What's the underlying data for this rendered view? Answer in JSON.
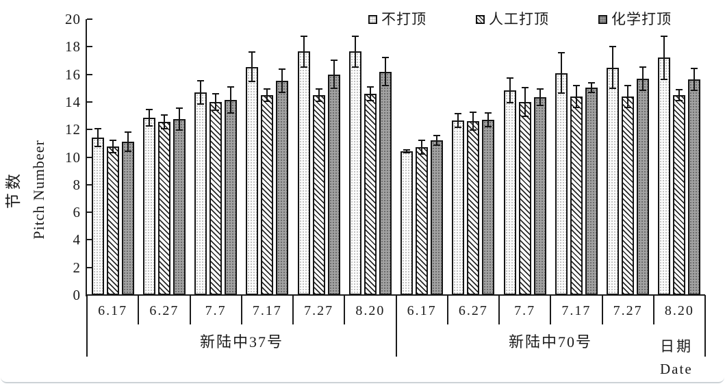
{
  "figure": {
    "background": "#ffffff",
    "page_edge_color": "#ccd2d6"
  },
  "colors": {
    "axis": "#1a1a1a",
    "bar_border": "#141414",
    "light_stipple_fill": "#fcfcfc",
    "light_stipple_dot": "#b2b2b2",
    "hatch_line": "#262626",
    "dark_stipple_fill": "#a2a2a2",
    "dark_stipple_dot": "#686868"
  },
  "chart_data": {
    "type": "bar",
    "title": "",
    "ylabel_cn": "节数",
    "ylabel_en": "Pitch Numbeer",
    "xlabel_cn": "日期",
    "xlabel_en": "Date",
    "ylim": [
      0,
      20
    ],
    "y_tick_step": 2,
    "grid": false,
    "error_bars": true,
    "legend_position": "top",
    "group_labels": [
      "新陆中37号",
      "新陆中70号"
    ],
    "categories": [
      "6.17",
      "6.27",
      "7.7",
      "7.17",
      "7.27",
      "8.20",
      "6.17",
      "6.27",
      "7.7",
      "7.17",
      "7.27",
      "8.20"
    ],
    "series": [
      {
        "name": "不打顶",
        "pattern": "light",
        "values": [
          11.4,
          12.85,
          14.7,
          16.55,
          17.65,
          17.65,
          10.4,
          12.65,
          14.85,
          16.1,
          16.5,
          17.2
        ],
        "errors": [
          0.65,
          0.6,
          0.85,
          1.05,
          1.1,
          1.1,
          0.1,
          0.5,
          0.9,
          1.45,
          1.5,
          1.55
        ]
      },
      {
        "name": "人工打顶",
        "pattern": "hatch",
        "values": [
          10.75,
          12.55,
          14.0,
          14.5,
          14.5,
          14.6,
          10.7,
          12.6,
          14.0,
          14.4,
          14.4,
          14.5
        ],
        "errors": [
          0.45,
          0.5,
          0.6,
          0.45,
          0.45,
          0.5,
          0.5,
          0.65,
          1.05,
          0.8,
          0.8,
          0.4
        ]
      },
      {
        "name": "化学打顶",
        "pattern": "dark",
        "values": [
          11.1,
          12.75,
          14.15,
          15.55,
          16.0,
          16.2,
          11.2,
          12.7,
          14.35,
          15.05,
          15.7,
          15.65
        ],
        "errors": [
          0.7,
          0.8,
          0.95,
          0.85,
          1.0,
          1.0,
          0.35,
          0.5,
          0.6,
          0.35,
          0.85,
          0.8
        ]
      }
    ]
  }
}
